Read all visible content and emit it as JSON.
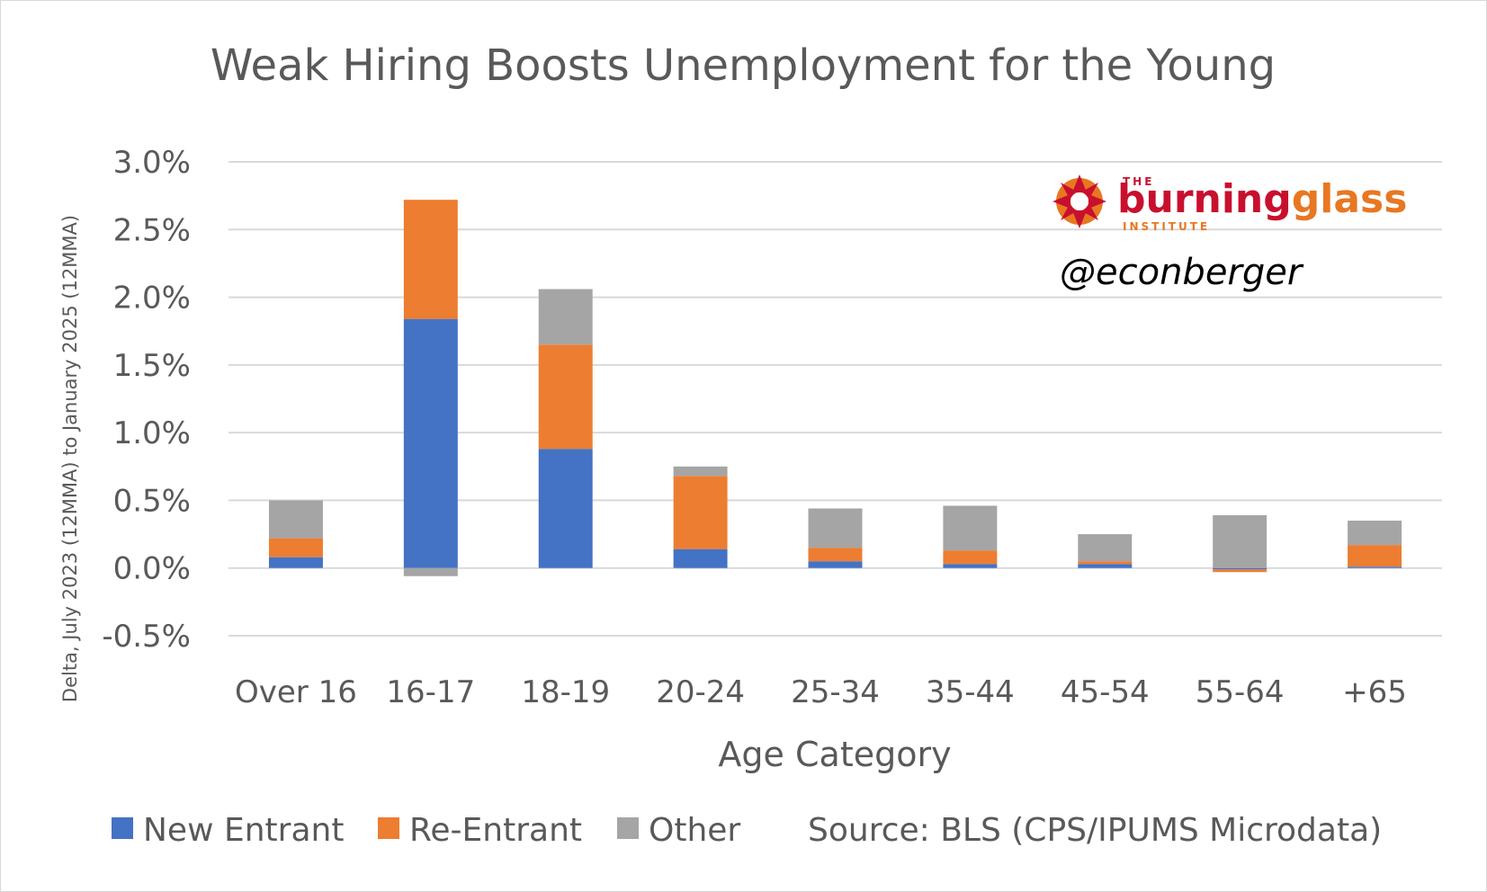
{
  "chart_data": {
    "type": "bar",
    "stacked": true,
    "title": "Weak Hiring Boosts Unemployment for the Young",
    "xlabel": "Age Category",
    "ylabel": "Delta, July 2023 (12MMA) to January 2025 (12MMA)",
    "ylim": [
      -0.005,
      0.03
    ],
    "yticks": [
      "3.0%",
      "2.5%",
      "2.0%",
      "1.5%",
      "1.0%",
      "0.5%",
      "0.0%",
      "-0.5%"
    ],
    "ytick_values": [
      0.03,
      0.025,
      0.02,
      0.015,
      0.01,
      0.005,
      0.0,
      -0.005
    ],
    "grid": true,
    "legend_position": "bottom",
    "categories": [
      "Over 16",
      "16-17",
      "18-19",
      "20-24",
      "25-34",
      "35-44",
      "45-54",
      "55-64",
      "+65"
    ],
    "series": [
      {
        "name": "New Entrant",
        "color": "#4472C4",
        "values": [
          0.0008,
          0.0184,
          0.0088,
          0.0014,
          0.0005,
          0.0003,
          0.0003,
          -0.0001,
          0.0001
        ]
      },
      {
        "name": "Re-Entrant",
        "color": "#ED7D31",
        "values": [
          0.0014,
          0.0088,
          0.0077,
          0.0054,
          0.001,
          0.001,
          0.0002,
          -0.0002,
          0.0016
        ]
      },
      {
        "name": "Other",
        "color": "#A5A5A5",
        "values": [
          0.0028,
          -0.0006,
          0.0041,
          0.0007,
          0.0029,
          0.0033,
          0.002,
          0.0039,
          0.0018
        ]
      }
    ]
  },
  "source_note": "Source: BLS (CPS/IPUMS Microdata)",
  "watermark": {
    "logo_top": "THE",
    "logo_main_1": "burning",
    "logo_main_2": "glass",
    "logo_sub": "INSTITUTE",
    "handle": "@econberger",
    "logo_red": "#C8102E",
    "logo_orange": "#E87722"
  }
}
